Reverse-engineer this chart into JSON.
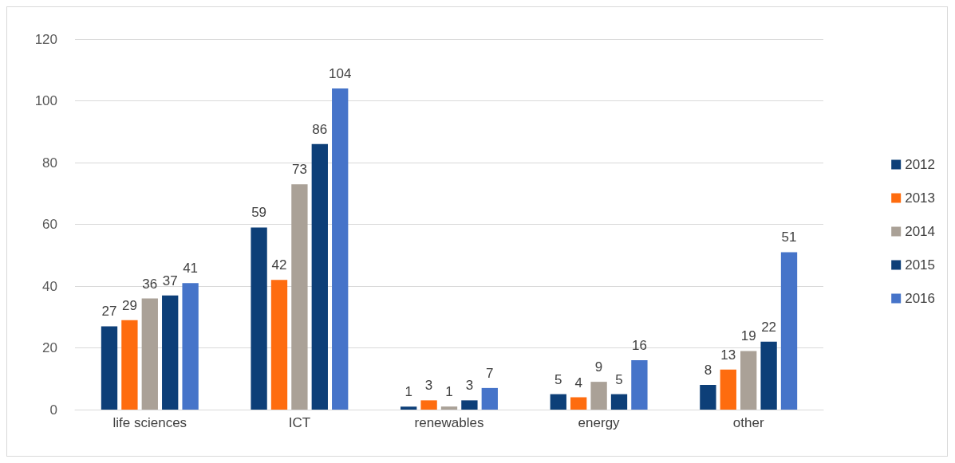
{
  "chart_data": {
    "type": "bar",
    "categories": [
      "life sciences",
      "ICT",
      "renewables",
      "energy",
      "other"
    ],
    "series": [
      {
        "name": "2012",
        "color": "#0d3f78",
        "values": [
          27,
          59,
          1,
          5,
          8
        ]
      },
      {
        "name": "2013",
        "color": "#fe6c0f",
        "values": [
          29,
          42,
          3,
          4,
          13
        ]
      },
      {
        "name": "2014",
        "color": "#aaa197",
        "values": [
          36,
          73,
          1,
          9,
          19
        ]
      },
      {
        "name": "2015",
        "color": "#0d3f78",
        "values": [
          37,
          86,
          3,
          5,
          22
        ]
      },
      {
        "name": "2016",
        "color": "#4674c9",
        "values": [
          41,
          104,
          7,
          16,
          51
        ]
      }
    ],
    "ylim": [
      0,
      120
    ],
    "yticks": [
      0,
      20,
      40,
      60,
      80,
      100,
      120
    ],
    "grid": "y",
    "legend": "right",
    "data_labels": true
  }
}
